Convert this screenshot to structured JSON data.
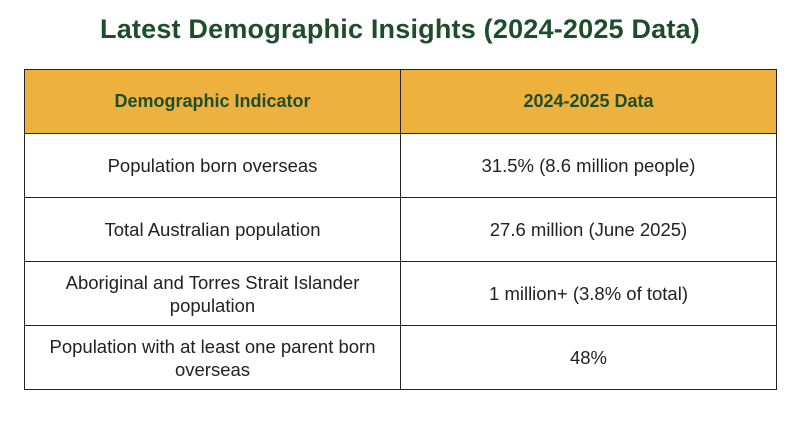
{
  "header": {
    "title": "Latest Demographic Insights (2024-2025 Data)"
  },
  "table": {
    "columns": [
      "Demographic Indicator",
      "2024-2025 Data"
    ],
    "rows": [
      [
        "Population born overseas",
        "31.5% (8.6 million people)"
      ],
      [
        "Total Australian population",
        "27.6 million (June 2025)"
      ],
      [
        "Aboriginal and Torres Strait Islander population",
        "1 million+ (3.8% of total)"
      ],
      [
        "Population with at least one parent born overseas",
        "48%"
      ]
    ]
  }
}
